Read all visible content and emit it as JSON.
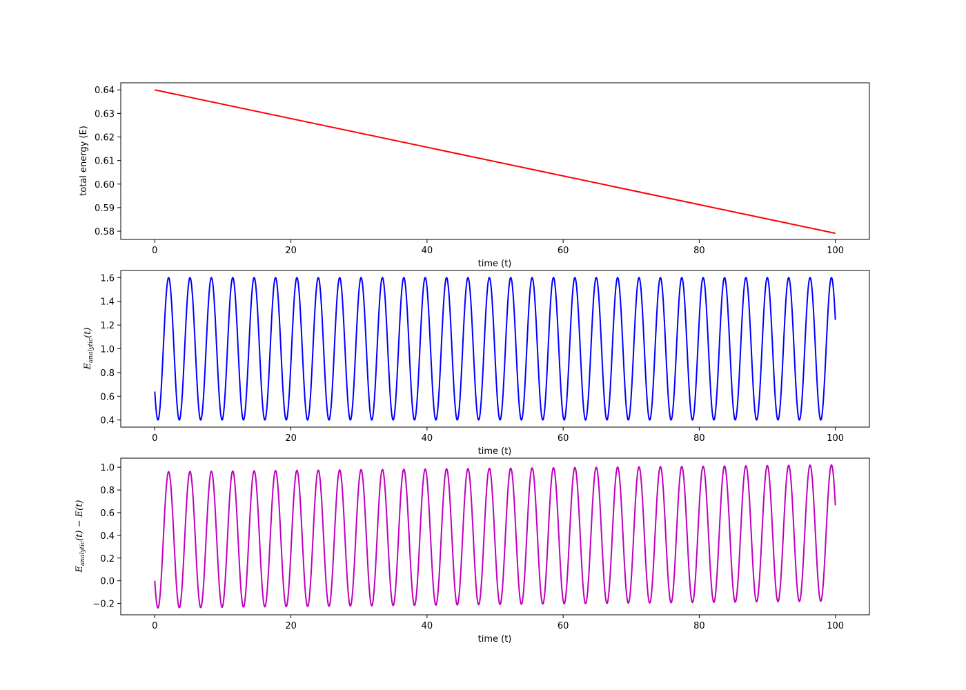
{
  "chart_data": [
    {
      "type": "line",
      "xlabel": "time (t)",
      "ylabel": "total energy (E)",
      "xlim": [
        -5,
        105
      ],
      "ylim": [
        0.5765,
        0.643
      ],
      "xticks": [
        0,
        20,
        40,
        60,
        80,
        100
      ],
      "xtick_labels": [
        "0",
        "20",
        "40",
        "60",
        "80",
        "100"
      ],
      "yticks": [
        0.58,
        0.59,
        0.6,
        0.61,
        0.62,
        0.63,
        0.64
      ],
      "ytick_labels": [
        "0.58",
        "0.59",
        "0.60",
        "0.61",
        "0.62",
        "0.63",
        "0.64"
      ],
      "grid": false,
      "series": [
        {
          "color": "#ff0000",
          "x": [
            0,
            100
          ],
          "y": [
            0.64,
            0.5791
          ]
        }
      ]
    },
    {
      "type": "line",
      "xlabel": "time (t)",
      "ylabel": {
        "base": "E",
        "sub": "analytic",
        "suffix": "(t)"
      },
      "xlim": [
        -5,
        105
      ],
      "ylim": [
        0.34,
        1.66
      ],
      "xticks": [
        0,
        20,
        40,
        60,
        80,
        100
      ],
      "xtick_labels": [
        "0",
        "20",
        "40",
        "60",
        "80",
        "100"
      ],
      "yticks": [
        0.4,
        0.6,
        0.8,
        1.0,
        1.2,
        1.4,
        1.6
      ],
      "ytick_labels": [
        "0.4",
        "0.6",
        "0.8",
        "1.0",
        "1.2",
        "1.4",
        "1.6"
      ],
      "grid": false,
      "series": [
        {
          "color": "#0000ff",
          "function": "oscillation",
          "x_start": 0,
          "x_end": 100,
          "center": 1.0,
          "amplitude": 0.6,
          "period": 3.1416,
          "start_value": 0.64,
          "end_value": 1.25
        }
      ]
    },
    {
      "type": "line",
      "xlabel": "time (t)",
      "ylabel": {
        "base": "E",
        "sub": "analytic",
        "suffix": "(t) − E(t)"
      },
      "xlim": [
        -5,
        105
      ],
      "ylim": [
        -0.3,
        1.08
      ],
      "xticks": [
        0,
        20,
        40,
        60,
        80,
        100
      ],
      "xtick_labels": [
        "0",
        "20",
        "40",
        "60",
        "80",
        "100"
      ],
      "yticks": [
        -0.2,
        0.0,
        0.2,
        0.4,
        0.6,
        0.8,
        1.0
      ],
      "ytick_labels": [
        "−0.2",
        "0.0",
        "0.2",
        "0.4",
        "0.6",
        "0.8",
        "1.0"
      ],
      "grid": false,
      "series": [
        {
          "color": "#bf00bf",
          "function": "oscillation_minus_linear",
          "x_start": 0,
          "x_end": 100,
          "peak_first": 0.96,
          "peak_last": 1.02,
          "trough_first": -0.24,
          "trough_last": -0.18,
          "start_value": 0.0,
          "end_value": 0.67
        }
      ]
    }
  ]
}
